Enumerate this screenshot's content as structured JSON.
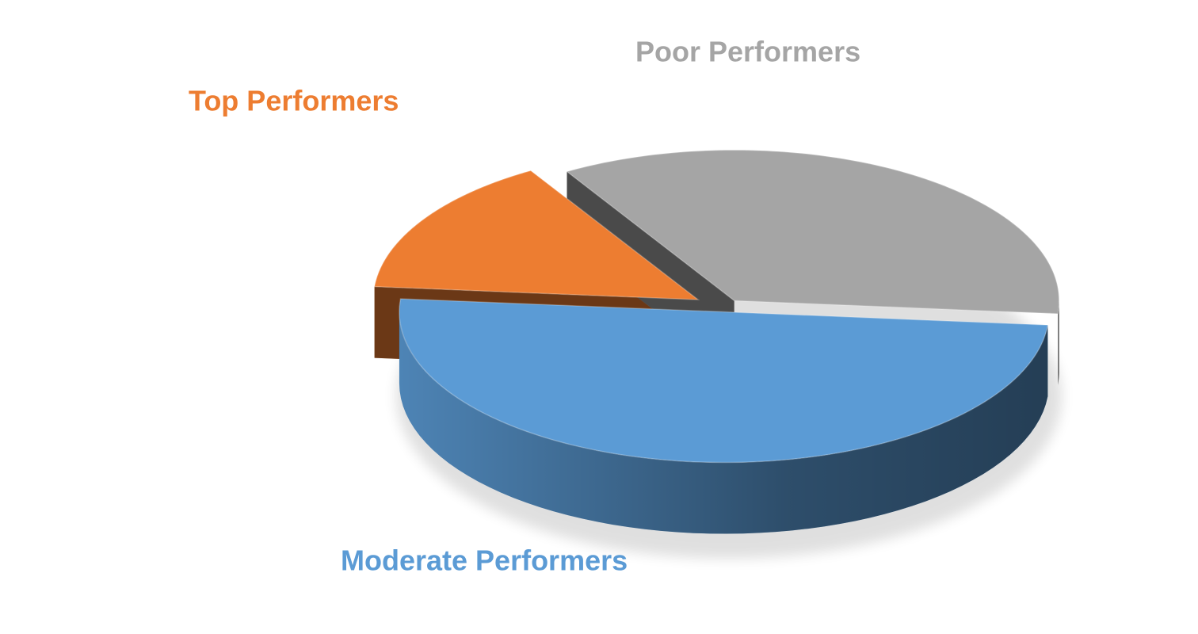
{
  "chart_data": {
    "type": "pie",
    "categories": [
      "Top Performers",
      "Poor Performers",
      "Moderate Performers"
    ],
    "values": [
      15,
      35,
      50
    ],
    "colors": [
      "#ed7d31",
      "#a5a5a5",
      "#5b9bd5"
    ]
  }
}
